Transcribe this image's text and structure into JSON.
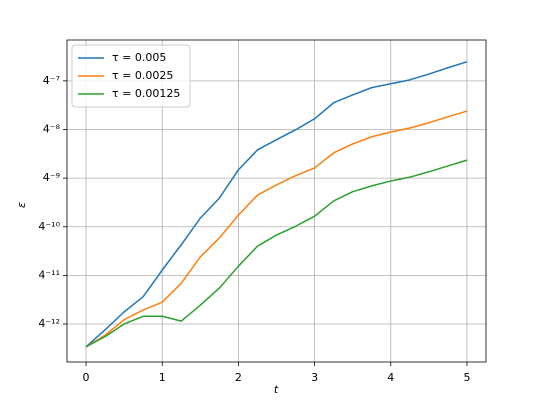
{
  "chart_data": {
    "type": "line",
    "xlabel": "t",
    "ylabel": "ε",
    "x": [
      0,
      0.25,
      0.5,
      0.75,
      1,
      1.25,
      1.5,
      1.75,
      2,
      2.25,
      2.5,
      2.75,
      3,
      3.25,
      3.5,
      3.75,
      4,
      4.25,
      4.5,
      4.75,
      5
    ],
    "series": [
      {
        "name": "τ = 0.005",
        "color": "#1f77b4",
        "values": [
          3.11e-08,
          5.05e-08,
          8.43e-08,
          1.3e-07,
          2.78e-07,
          5.71e-07,
          1.22e-06,
          2.16e-06,
          4.83e-06,
          8.52e-06,
          1.14e-05,
          1.51e-05,
          2.07e-05,
          3.27e-05,
          4.08e-05,
          5.03e-05,
          5.62e-05,
          6.28e-05,
          7.41e-05,
          8.87e-05,
          0.000105
        ]
      },
      {
        "name": "τ = 0.0025",
        "color": "#ff7f0e",
        "values": [
          3.11e-08,
          4.33e-08,
          6.75e-08,
          8.91e-08,
          1.11e-07,
          1.91e-07,
          4.04e-07,
          6.93e-07,
          1.33e-06,
          2.35e-06,
          3.14e-06,
          4.09e-06,
          5.1e-06,
          7.84e-06,
          1.01e-05,
          1.24e-05,
          1.42e-05,
          1.59e-05,
          1.85e-05,
          2.19e-05,
          2.58e-05
        ]
      },
      {
        "name": "τ = 0.00125",
        "color": "#2ca02c",
        "values": [
          3.11e-08,
          4.16e-08,
          5.96e-08,
          7.44e-08,
          7.44e-08,
          6.48e-08,
          1.02e-07,
          1.66e-07,
          3.1e-07,
          5.48e-07,
          7.53e-07,
          9.67e-07,
          1.29e-06,
          1.99e-06,
          2.59e-06,
          3.06e-06,
          3.51e-06,
          3.92e-06,
          4.57e-06,
          5.4e-06,
          6.37e-06
        ]
      }
    ],
    "xlim": [
      -0.25,
      5.25
    ],
    "xticks": [
      0,
      1,
      2,
      3,
      4,
      5
    ],
    "ylim": [
      2.02e-08,
      0.0001955
    ],
    "yscale": "log",
    "yticks": [
      {
        "value": 5.960464477539063e-08,
        "label": "4⁻¹²"
      },
      {
        "value": 2.384185791015625e-07,
        "label": "4⁻¹¹"
      },
      {
        "value": 9.5367431640625e-07,
        "label": "4⁻¹⁰"
      },
      {
        "value": 3.814697265625e-06,
        "label": "4⁻⁹"
      },
      {
        "value": 1.52587890625e-05,
        "label": "4⁻⁸"
      },
      {
        "value": 6.103515625e-05,
        "label": "4⁻⁷"
      }
    ],
    "grid": true,
    "legend": "upper left"
  }
}
